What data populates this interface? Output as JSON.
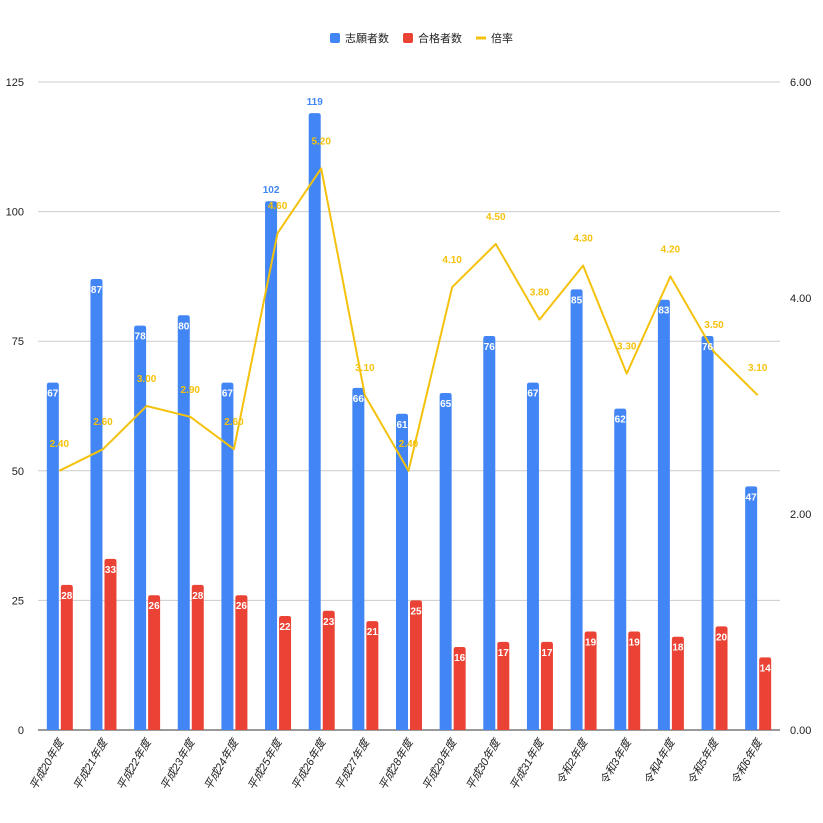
{
  "chart_data": {
    "type": "bar",
    "categories": [
      "平成20年度",
      "平成21年度",
      "平成22年度",
      "平成23年度",
      "平成24年度",
      "平成25年度",
      "平成26年度",
      "平成27年度",
      "平成28年度",
      "平成29年度",
      "平成30年度",
      "平成31年度",
      "令和2年度",
      "令和3年度",
      "令和4年度",
      "令和5年度",
      "令和6年度"
    ],
    "series": [
      {
        "name": "志願者数",
        "type": "bar",
        "axis": "left",
        "color": "#4285f4",
        "values": [
          67,
          87,
          78,
          80,
          67,
          102,
          119,
          66,
          61,
          65,
          76,
          67,
          85,
          62,
          83,
          76,
          47
        ]
      },
      {
        "name": "合格者数",
        "type": "bar",
        "axis": "left",
        "color": "#ea4335",
        "values": [
          28,
          33,
          26,
          28,
          26,
          22,
          23,
          21,
          25,
          16,
          17,
          17,
          19,
          19,
          18,
          20,
          14
        ]
      },
      {
        "name": "倍率",
        "type": "line",
        "axis": "right",
        "color": "#f4c20d",
        "values": [
          2.4,
          2.6,
          3.0,
          2.9,
          2.6,
          4.6,
          5.2,
          3.1,
          2.4,
          4.1,
          4.5,
          3.8,
          4.3,
          3.3,
          4.2,
          3.5,
          3.1
        ],
        "labels": [
          "2.40",
          "2.60",
          "3.00",
          "2.90",
          "2.60",
          "4.60",
          "5.20",
          "3.10",
          "2.40",
          "4.10",
          "4.50",
          "3.80",
          "4.30",
          "3.30",
          "4.20",
          "3.50",
          "3.10"
        ]
      }
    ],
    "y_left": {
      "ylim": [
        0,
        125
      ],
      "ticks": [
        "0",
        "25",
        "50",
        "75",
        "100",
        "125"
      ]
    },
    "y_right": {
      "ylim": [
        0,
        6
      ],
      "ticks": [
        "0.00",
        "2.00",
        "4.00",
        "6.00"
      ]
    },
    "legend": {
      "position": "top",
      "items": [
        "志願者数",
        "合格者数",
        "倍率"
      ]
    },
    "grid": true
  }
}
